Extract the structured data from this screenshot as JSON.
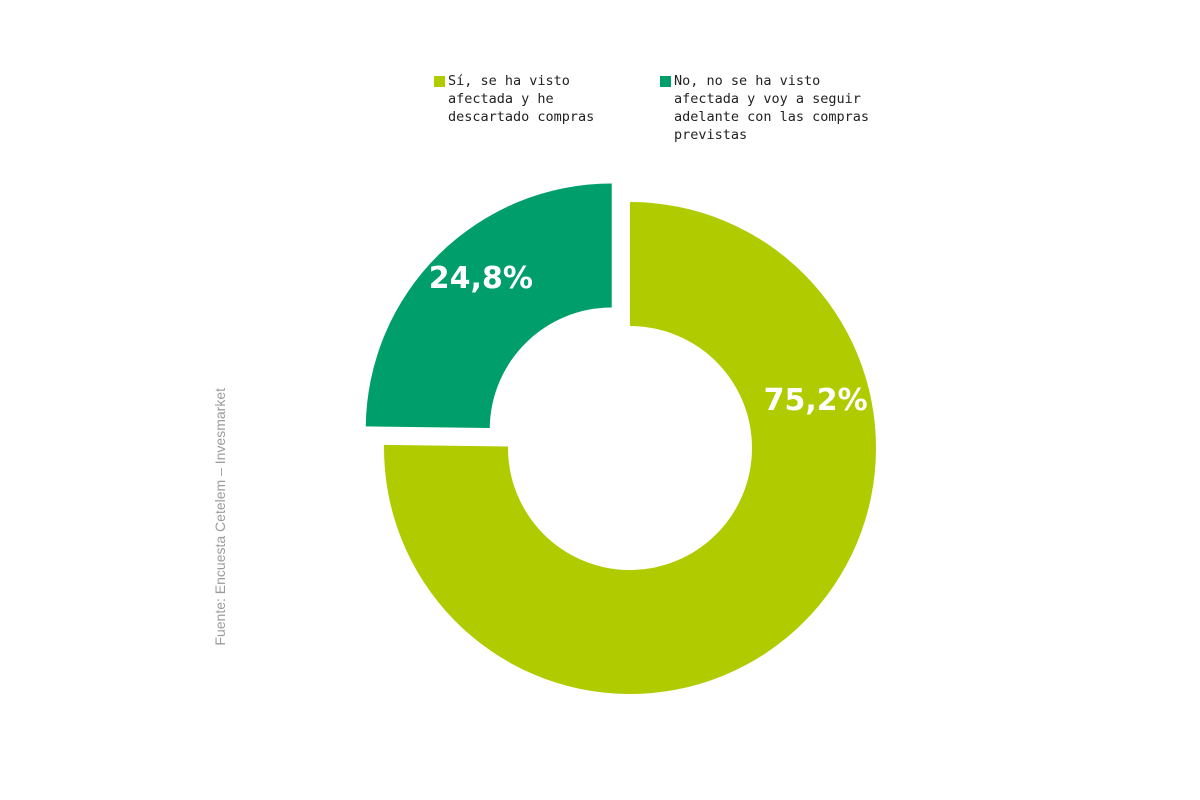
{
  "chart_data": {
    "type": "pie",
    "subtype": "donut",
    "legend_position": "top",
    "series": [
      {
        "name": "Sí, se ha visto afectada y he descartado compras",
        "value": 75.2,
        "label": "75,2%",
        "color": "#b0cb00"
      },
      {
        "name": "No, no se ha visto afectada y voy a seguir adelante con las compras previstas",
        "value": 24.8,
        "label": "24,8%",
        "color": "#009e6a"
      }
    ]
  },
  "source": "Fuente: Encuesta Cetelem – Invesmarket"
}
